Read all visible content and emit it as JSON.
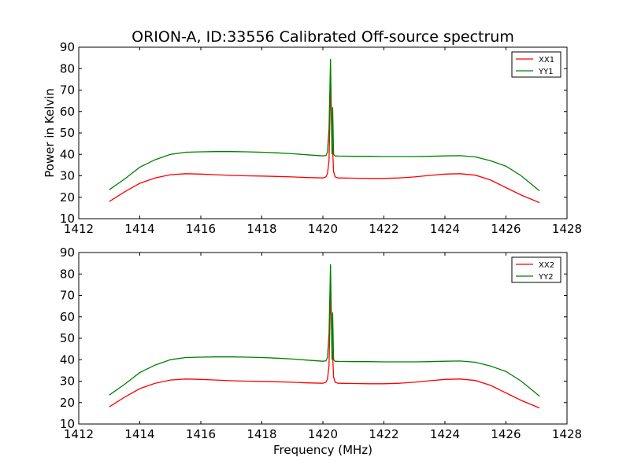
{
  "figure": {
    "title": "ORION-A, ID:33556 Calibrated Off-source spectrum",
    "xlabel": "Frequency (MHz)",
    "ylabel": "Power in Kelvin"
  },
  "colors": {
    "xx": "#ff0000",
    "yy": "#008000"
  },
  "chart_data": [
    {
      "type": "line",
      "xlim": [
        1412,
        1428
      ],
      "ylim": [
        10,
        90
      ],
      "xticks": [
        1412,
        1414,
        1416,
        1418,
        1420,
        1422,
        1424,
        1426,
        1428
      ],
      "yticks": [
        10,
        20,
        30,
        40,
        50,
        60,
        70,
        80,
        90
      ],
      "legend": "top-right",
      "grid": false,
      "series": [
        {
          "name": "XX1",
          "color": "#ff0000",
          "x": [
            1413,
            1413.5,
            1414,
            1414.5,
            1415,
            1415.5,
            1416,
            1416.5,
            1417,
            1417.5,
            1418,
            1418.5,
            1419,
            1419.5,
            1420,
            1420.1,
            1420.15,
            1420.2,
            1420.25,
            1420.3,
            1420.35,
            1420.4,
            1420.5,
            1421,
            1421.5,
            1422,
            1422.5,
            1423,
            1423.5,
            1424,
            1424.5,
            1425,
            1425.5,
            1426,
            1426.5,
            1427.1
          ],
          "y": [
            18,
            22.5,
            26.5,
            29,
            30.5,
            31,
            30.8,
            30.5,
            30.2,
            30,
            29.9,
            29.7,
            29.5,
            29.2,
            29,
            29.5,
            31,
            37,
            71,
            49,
            32,
            29.5,
            29,
            28.9,
            28.8,
            28.8,
            29,
            29.5,
            30.2,
            30.8,
            31,
            30.3,
            28,
            24.5,
            21,
            17.5
          ]
        },
        {
          "name": "YY1",
          "color": "#008000",
          "x": [
            1413,
            1413.5,
            1414,
            1414.5,
            1415,
            1415.5,
            1416,
            1416.5,
            1417,
            1417.5,
            1418,
            1418.5,
            1419,
            1419.5,
            1420,
            1420.1,
            1420.15,
            1420.2,
            1420.25,
            1420.3,
            1420.32,
            1420.35,
            1420.4,
            1420.5,
            1421,
            1421.5,
            1422,
            1422.5,
            1423,
            1423.5,
            1424,
            1424.5,
            1425,
            1425.5,
            1426,
            1426.5,
            1427.1
          ],
          "y": [
            23.5,
            28.5,
            34,
            37.5,
            40,
            41,
            41.2,
            41.3,
            41.3,
            41.2,
            41,
            40.7,
            40.3,
            39.8,
            39.3,
            39.5,
            41,
            52,
            84.5,
            40,
            62,
            40,
            39.3,
            39.2,
            39.1,
            39.1,
            39,
            39,
            39,
            39.1,
            39.3,
            39.4,
            38.8,
            37,
            34.5,
            30,
            23
          ]
        }
      ]
    },
    {
      "type": "line",
      "xlim": [
        1412,
        1428
      ],
      "ylim": [
        10,
        90
      ],
      "xticks": [
        1412,
        1414,
        1416,
        1418,
        1420,
        1422,
        1424,
        1426,
        1428
      ],
      "yticks": [
        10,
        20,
        30,
        40,
        50,
        60,
        70,
        80,
        90
      ],
      "legend": "top-right",
      "grid": false,
      "series": [
        {
          "name": "XX2",
          "color": "#ff0000",
          "x": [
            1413,
            1413.5,
            1414,
            1414.5,
            1415,
            1415.5,
            1416,
            1416.5,
            1417,
            1417.5,
            1418,
            1418.5,
            1419,
            1419.5,
            1420,
            1420.1,
            1420.15,
            1420.2,
            1420.25,
            1420.3,
            1420.35,
            1420.4,
            1420.5,
            1421,
            1421.5,
            1422,
            1422.5,
            1423,
            1423.5,
            1424,
            1424.5,
            1425,
            1425.5,
            1426,
            1426.5,
            1427.1
          ],
          "y": [
            18,
            22.5,
            26.5,
            29,
            30.5,
            31,
            30.8,
            30.5,
            30.2,
            30,
            29.9,
            29.7,
            29.5,
            29.2,
            29,
            29.5,
            31,
            37,
            71,
            49,
            32,
            29.5,
            29,
            28.9,
            28.8,
            28.8,
            29,
            29.5,
            30.2,
            30.8,
            31,
            30.3,
            28,
            24.5,
            21,
            17.5
          ]
        },
        {
          "name": "YY2",
          "color": "#008000",
          "x": [
            1413,
            1413.5,
            1414,
            1414.5,
            1415,
            1415.5,
            1416,
            1416.5,
            1417,
            1417.5,
            1418,
            1418.5,
            1419,
            1419.5,
            1420,
            1420.1,
            1420.15,
            1420.2,
            1420.25,
            1420.3,
            1420.32,
            1420.35,
            1420.4,
            1420.5,
            1421,
            1421.5,
            1422,
            1422.5,
            1423,
            1423.5,
            1424,
            1424.5,
            1425,
            1425.5,
            1426,
            1426.5,
            1427.1
          ],
          "y": [
            23.5,
            28.5,
            34,
            37.5,
            40,
            41,
            41.2,
            41.3,
            41.3,
            41.2,
            41,
            40.7,
            40.3,
            39.8,
            39.3,
            39.5,
            41,
            52,
            84.5,
            40,
            62,
            40,
            39.3,
            39.2,
            39.1,
            39.1,
            39,
            39,
            39,
            39.1,
            39.3,
            39.4,
            38.8,
            37,
            34.5,
            30,
            23
          ]
        }
      ]
    }
  ]
}
